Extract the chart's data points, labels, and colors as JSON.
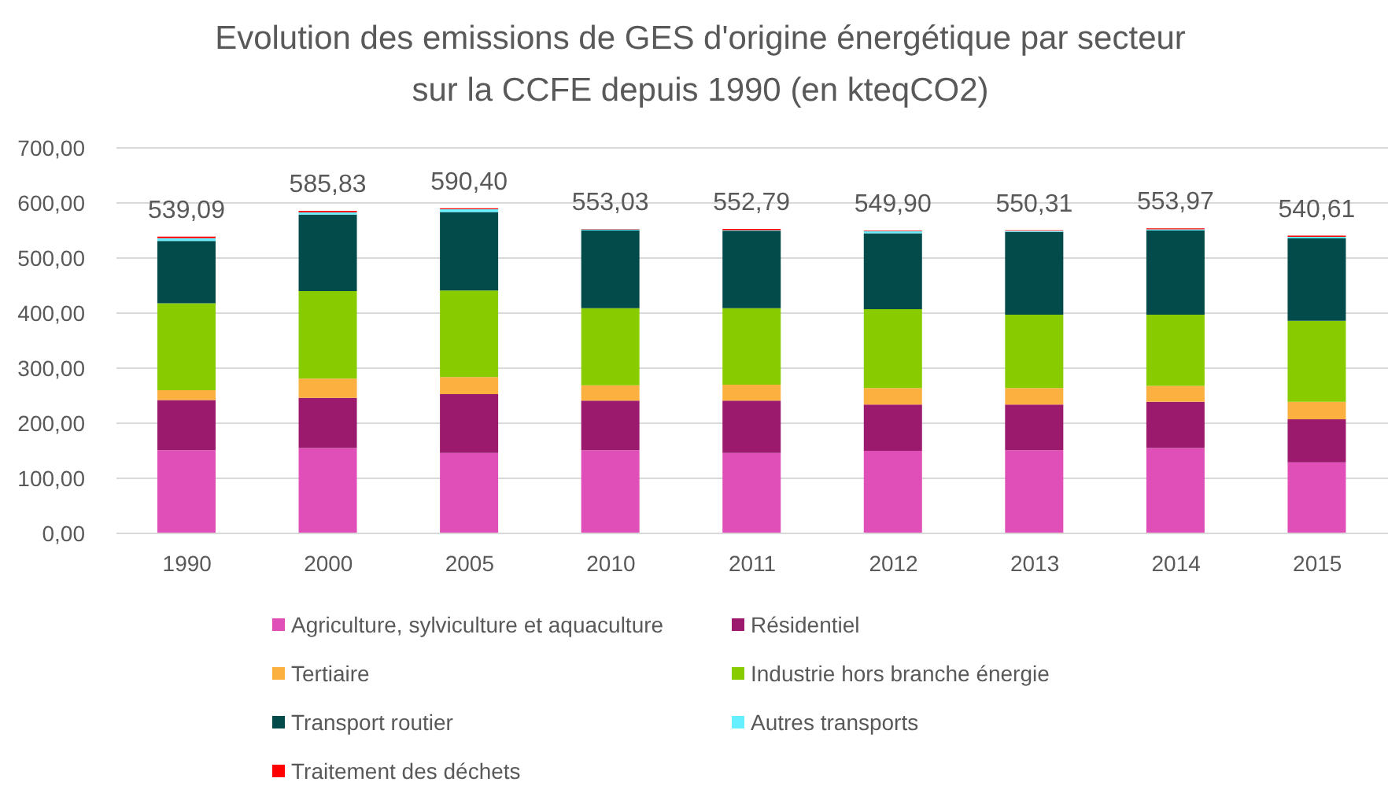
{
  "chart_data": {
    "type": "bar",
    "title": "Evolution des emissions de GES d'origine énergétique par secteur sur la CCFE depuis 1990 (en kteqCO2)",
    "categories": [
      "1990",
      "2000",
      "2005",
      "2010",
      "2011",
      "2012",
      "2013",
      "2014",
      "2015"
    ],
    "series": [
      {
        "name": "Agriculture, sylviculture et aquaculture",
        "color": "#e04fb8",
        "values": [
          151,
          155,
          146,
          151,
          146,
          150,
          151,
          155,
          129
        ]
      },
      {
        "name": "Résidentiel",
        "color": "#9b1a6e",
        "values": [
          91,
          91,
          107,
          90,
          95,
          84,
          83,
          84,
          78
        ]
      },
      {
        "name": "Tertiaire",
        "color": "#fbb040",
        "values": [
          18,
          35,
          31,
          28,
          29,
          30,
          30,
          29,
          32
        ]
      },
      {
        "name": "Industrie hors branche énergie",
        "color": "#88cc00",
        "values": [
          158,
          159,
          157,
          140,
          139,
          143,
          133,
          129,
          147
        ]
      },
      {
        "name": "Transport routier",
        "color": "#024b4a",
        "values": [
          113.09,
          138.83,
          142.4,
          141.03,
          140.79,
          137.9,
          150.31,
          152.97,
          149.61
        ]
      },
      {
        "name": "Autres transports",
        "color": "#66f0ff",
        "values": [
          5,
          4,
          5,
          2,
          1,
          4,
          2,
          2,
          3
        ]
      },
      {
        "name": "Traitement des déchets",
        "color": "#ff0000",
        "values": [
          3,
          3,
          2,
          1,
          2,
          1,
          1,
          2,
          2
        ]
      }
    ],
    "stacked": true,
    "totals": [
      "539,09",
      "585,83",
      "590,40",
      "553,03",
      "552,79",
      "549,90",
      "550,31",
      "553,97",
      "540,61"
    ],
    "ylim": [
      0,
      700
    ],
    "yticks": [
      {
        "value": 0,
        "label": "0,00"
      },
      {
        "value": 100,
        "label": "100,00"
      },
      {
        "value": 200,
        "label": "200,00"
      },
      {
        "value": 300,
        "label": "300,00"
      },
      {
        "value": 400,
        "label": "400,00"
      },
      {
        "value": 500,
        "label": "500,00"
      },
      {
        "value": 600,
        "label": "600,00"
      },
      {
        "value": 700,
        "label": "700,00"
      }
    ],
    "grid": "y",
    "legend": "bottom"
  }
}
